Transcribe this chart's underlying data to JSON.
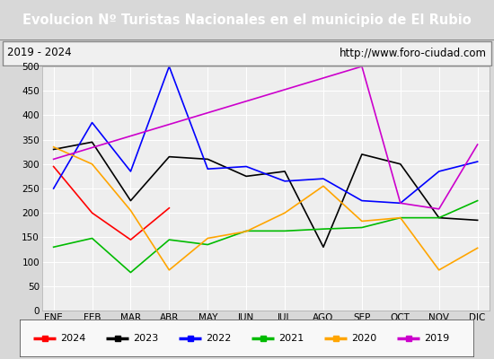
{
  "title": "Evolucion Nº Turistas Nacionales en el municipio de El Rubio",
  "subtitle_left": "2019 - 2024",
  "subtitle_right": "http://www.foro-ciudad.com",
  "months": [
    "ENE",
    "FEB",
    "MAR",
    "ABR",
    "MAY",
    "JUN",
    "JUL",
    "AGO",
    "SEP",
    "OCT",
    "NOV",
    "DIC"
  ],
  "series": {
    "2024": [
      295,
      200,
      145,
      210,
      null,
      null,
      null,
      null,
      null,
      null,
      null,
      null
    ],
    "2023": [
      330,
      345,
      225,
      315,
      310,
      275,
      285,
      130,
      320,
      300,
      190,
      185
    ],
    "2022": [
      250,
      385,
      285,
      500,
      290,
      295,
      265,
      270,
      225,
      220,
      285,
      305
    ],
    "2021": [
      130,
      148,
      78,
      145,
      135,
      163,
      163,
      167,
      170,
      190,
      190,
      225
    ],
    "2020": [
      335,
      300,
      205,
      83,
      148,
      162,
      200,
      255,
      183,
      190,
      83,
      128
    ],
    "2019": [
      310,
      null,
      null,
      null,
      null,
      null,
      null,
      null,
      500,
      220,
      208,
      340
    ]
  },
  "colors": {
    "2024": "#ff0000",
    "2023": "#000000",
    "2022": "#0000ff",
    "2021": "#00bb00",
    "2020": "#ffa500",
    "2019": "#cc00cc"
  },
  "ylim": [
    0,
    500
  ],
  "yticks": [
    0,
    50,
    100,
    150,
    200,
    250,
    300,
    350,
    400,
    450,
    500
  ],
  "bg_color": "#d8d8d8",
  "plot_bg": "#eeeeee",
  "title_bg": "#4472c4",
  "title_color": "#ffffff",
  "header_bg": "#f0f0f0",
  "header_border": "#888888"
}
